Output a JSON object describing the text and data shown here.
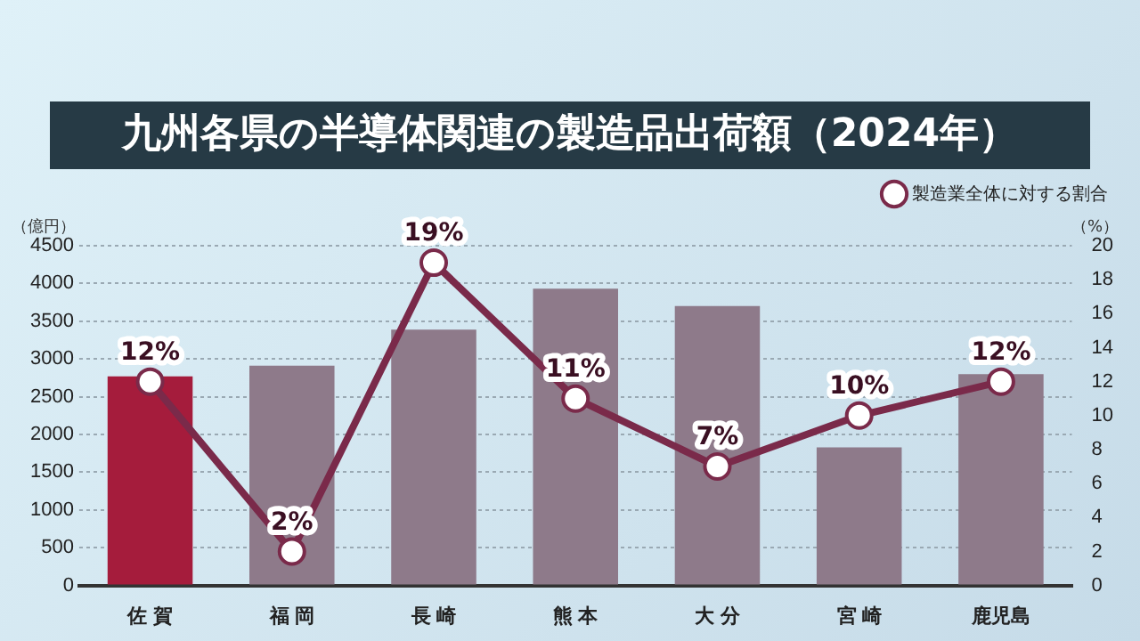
{
  "chart_data": {
    "type": "bar",
    "title": "九州各県の半導体関連の製造品出荷額（2024年）",
    "ylabel": "（億円）",
    "y2label": "（%）",
    "categories": [
      "佐 賀",
      "福 岡",
      "長 崎",
      "熊 本",
      "大 分",
      "宮 崎",
      "鹿児島"
    ],
    "series": [
      {
        "colors": [
          "#a51c3c",
          "#8e7a8a",
          "#8e7a8a",
          "#8e7a8a",
          "#8e7a8a",
          "#8e7a8a",
          "#8e7a8a"
        ],
        "values": [
          2770,
          2910,
          3390,
          3930,
          3700,
          1830,
          2800
        ]
      },
      {
        "type": "line",
        "name": "製造業全体に対する割合",
        "color": "#7a2a4a",
        "axis": "y2",
        "marker": "circle",
        "values": [
          12,
          2,
          19,
          11,
          7,
          10,
          12
        ],
        "value_labels": [
          "12%",
          "2%",
          "19%",
          "11%",
          "7%",
          "10%",
          "12%"
        ]
      }
    ],
    "ylim": [
      0,
      4500
    ],
    "yticks": [
      0,
      500,
      1000,
      1500,
      2000,
      2500,
      3000,
      3500,
      4000,
      4500
    ],
    "y2lim": [
      0,
      20
    ],
    "y2ticks": [
      0,
      2,
      4,
      6,
      8,
      10,
      12,
      14,
      16,
      18,
      20
    ],
    "grid": "y",
    "legend": "top right"
  }
}
